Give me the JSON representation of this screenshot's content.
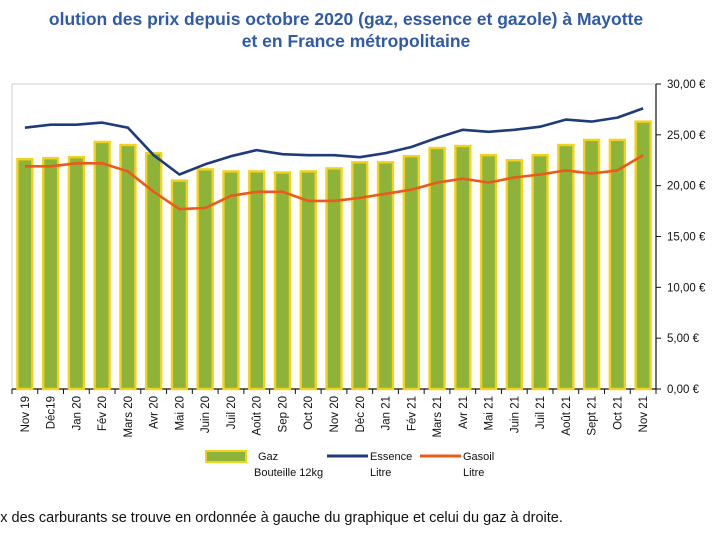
{
  "chart_data": {
    "type": "bar",
    "title_line1": "olution des prix depuis octobre 2020 (gaz, essence et gazole) à Mayotte",
    "title_line2": "et en France métropolitaine",
    "categories": [
      "Nov 19",
      "Déc19",
      "Jan 20",
      "Fév 20",
      "Mars 20",
      "Avr 20",
      "Mai 20",
      "Juin 20",
      "Juil 20",
      "Août 20",
      "Sep 20",
      "Oct 20",
      "Nov 20",
      "Déc 20",
      "Jan 21",
      "Fév 21",
      "Mars 21",
      "Avr 21",
      "Mai 21",
      "Juin 21",
      "Juil 21",
      "Août 21",
      "Sept 21",
      "Oct 21",
      "Nov 21"
    ],
    "y_right_ticks": [
      "30,00 €",
      "25,00 €",
      "20,00 €",
      "15,00 €",
      "10,00 €",
      "5,00 €",
      "0,00 €"
    ],
    "ylim": [
      0,
      30
    ],
    "grid": false,
    "legend_position": "bottom",
    "series": [
      {
        "name": "Gaz",
        "name_line2": "Bouteille 12kg",
        "kind": "bar",
        "color": "#8db33a",
        "edge": "#f2d21c",
        "values": [
          22.6,
          22.7,
          22.8,
          24.3,
          24.0,
          23.2,
          20.5,
          21.6,
          21.4,
          21.4,
          21.3,
          21.4,
          21.7,
          22.3,
          22.3,
          22.9,
          23.7,
          23.9,
          23.0,
          22.5,
          23.0,
          24.0,
          24.5,
          24.5,
          26.3
        ]
      },
      {
        "name": "Essence",
        "name_line2": "Litre",
        "kind": "line",
        "color": "#1f3c7a",
        "values": [
          25.7,
          26.0,
          26.0,
          26.2,
          25.7,
          23.0,
          21.1,
          22.1,
          22.9,
          23.5,
          23.1,
          23.0,
          23.0,
          22.8,
          23.2,
          23.8,
          24.7,
          25.5,
          25.3,
          25.5,
          25.8,
          26.5,
          26.3,
          26.7,
          27.6
        ]
      },
      {
        "name": "Gasoil",
        "name_line2": "Litre",
        "kind": "line",
        "color": "#ec5a1b",
        "values": [
          21.9,
          21.9,
          22.2,
          22.2,
          21.4,
          19.4,
          17.7,
          17.8,
          19.0,
          19.4,
          19.4,
          18.5,
          18.5,
          18.8,
          19.2,
          19.6,
          20.3,
          20.7,
          20.3,
          20.8,
          21.1,
          21.5,
          21.2,
          21.5,
          23.0
        ]
      }
    ]
  },
  "footnote": "ix des carburants se trouve en ordonnée à gauche du graphique et celui du gaz à droite."
}
